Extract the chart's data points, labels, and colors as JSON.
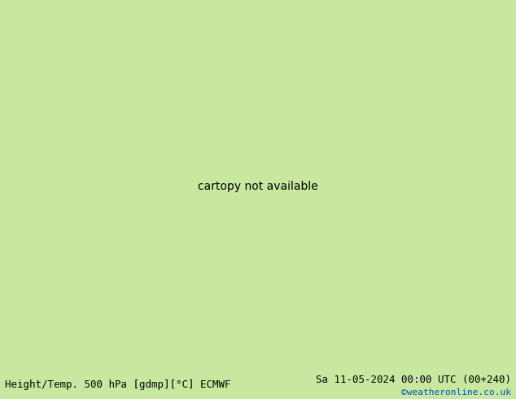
{
  "title_left": "Height/Temp. 500 hPa [gdmp][°C] ECMWF",
  "title_right": "Sa 11-05-2024 00:00 UTC (00+240)",
  "credit": "©weatheronline.co.uk",
  "background_color": "#c8e8a0",
  "land_color": "#c8e8a0",
  "sea_color": "#dcdcdc",
  "border_color": "#888888",
  "height_line_color": "#000000",
  "temp_orange_color": "#e08020",
  "temp_cyan_color": "#00b8a0",
  "temp_green_color": "#a0c800",
  "figsize": [
    6.34,
    4.9
  ],
  "dpi": 100,
  "bottom_bar_color": "#c8c8c8",
  "title_fontsize": 9,
  "credit_fontsize": 8,
  "credit_color": "#0055bb",
  "label_fontsize": 8,
  "extent": [
    -10,
    45,
    25,
    55
  ],
  "map_extent_lon_min": -12,
  "map_extent_lon_max": 47,
  "map_extent_lat_min": 22,
  "map_extent_lat_max": 57
}
